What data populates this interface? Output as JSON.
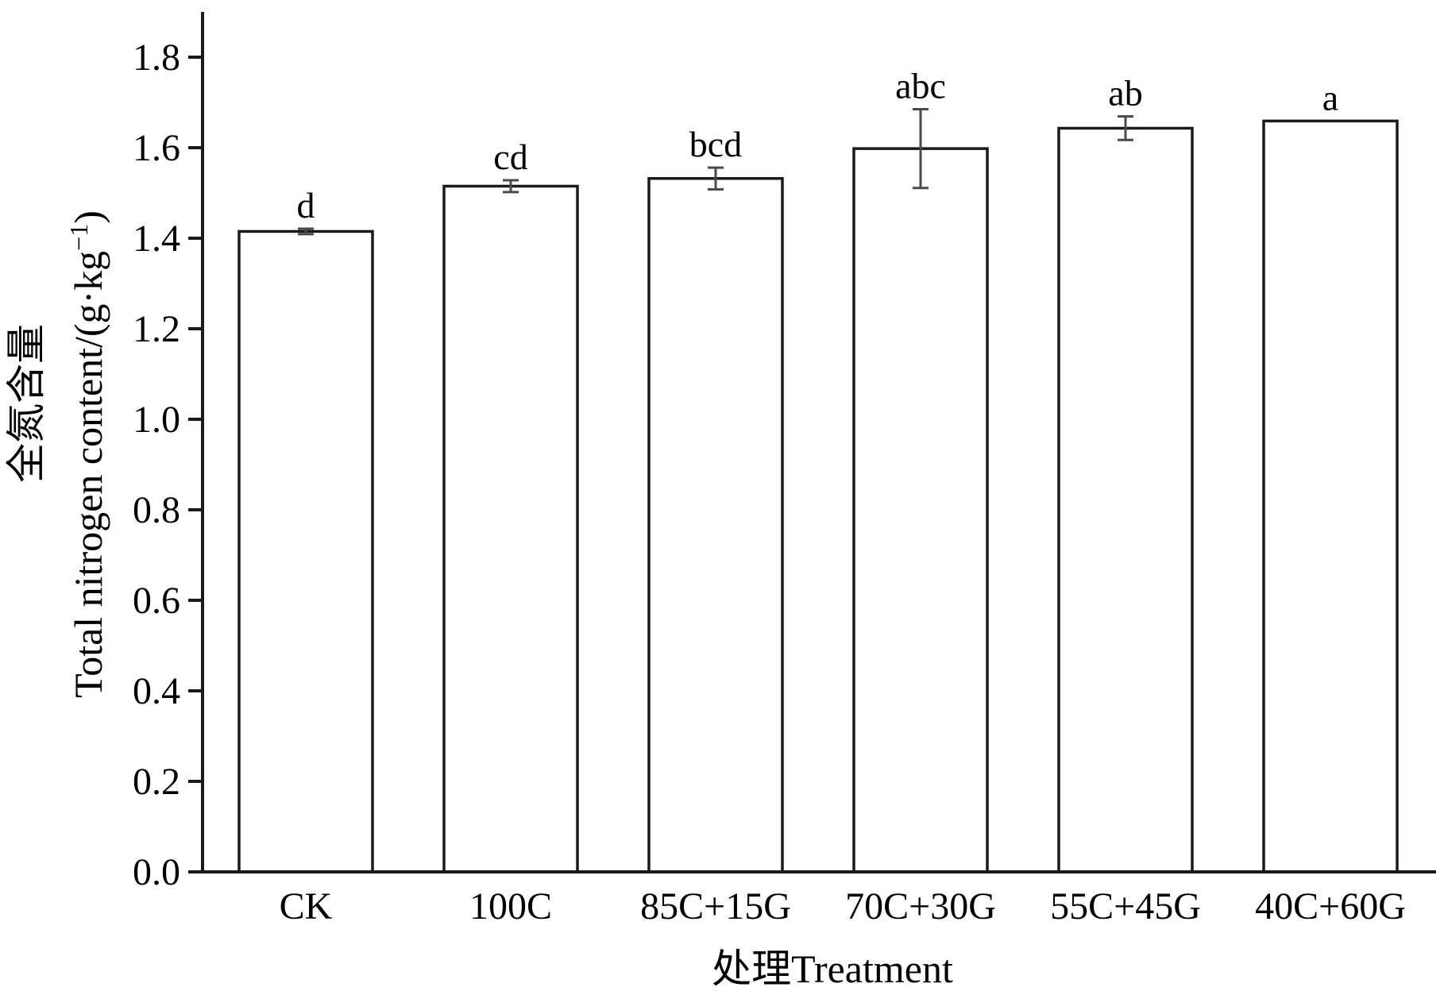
{
  "chart_data": {
    "type": "bar",
    "categories": [
      "CK",
      "100C",
      "85C+15G",
      "70C+30G",
      "55C+45G",
      "40C+60G"
    ],
    "values": [
      1.415,
      1.515,
      1.532,
      1.598,
      1.643,
      1.659
    ],
    "errors": [
      0.006,
      0.013,
      0.024,
      0.087,
      0.026,
      0.0
    ],
    "significance": [
      "d",
      "cd",
      "bcd",
      "abc",
      "ab",
      "a"
    ],
    "title": "",
    "xlabel": "处理Treatment",
    "ylabel_cn": "全氮含量",
    "ylabel": "Total nitrogen content/(g·kg",
    "ylabel_sup": "−1",
    "ylabel_close": ")",
    "ylim": [
      0,
      1.9
    ],
    "yticks": [
      0.0,
      0.2,
      0.4,
      0.6,
      0.8,
      1.0,
      1.2,
      1.4,
      1.6,
      1.8
    ],
    "ytick_labels": [
      "0.0",
      "0.2",
      "0.4",
      "0.6",
      "0.8",
      "1.0",
      "1.2",
      "1.4",
      "1.6",
      "1.8"
    ],
    "grid": false,
    "legend": "none",
    "colors": {
      "bar_fill": "#ffffff",
      "bar_stroke": "#1a1a1a",
      "axis": "#1a1a1a",
      "error": "#4a4a4a"
    }
  }
}
